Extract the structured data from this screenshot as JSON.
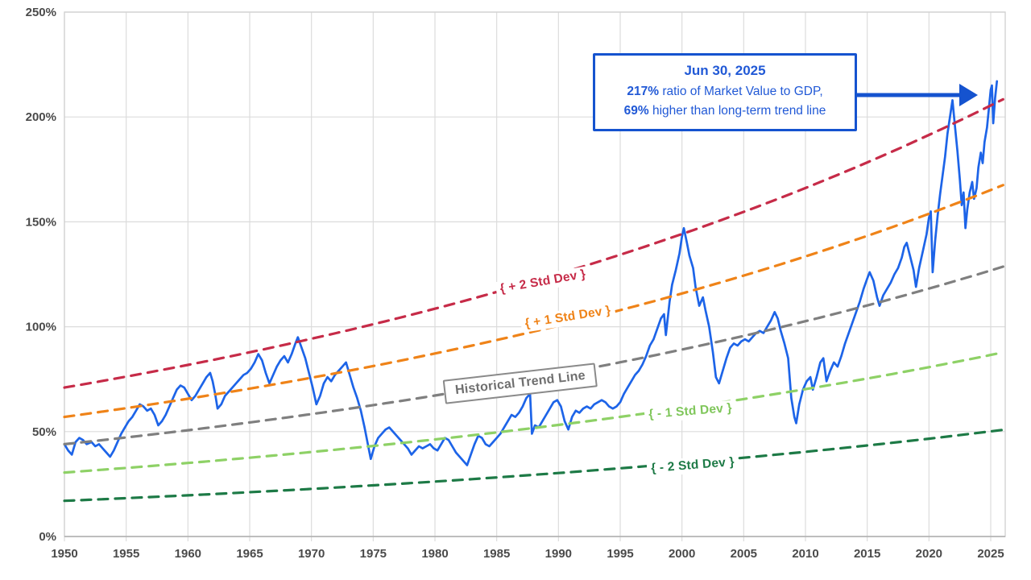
{
  "annotation_box": {
    "date_label": "Jun 30, 2025",
    "ratio_value": "217%",
    "ratio_text": " ratio of Market Value to GDP,",
    "deviation_value": "69%",
    "deviation_text": " higher than long-term trend line",
    "accent_color": "#1553cf"
  },
  "line_labels": {
    "plus2": "{ + 2 Std Dev }",
    "plus1": "{ + 1 Std Dev }",
    "trend": "Historical Trend Line",
    "minus1": "{ - 1 Std Dev }",
    "minus2": "{ - 2 Std Dev }"
  },
  "chart_data": {
    "type": "line",
    "title": "",
    "xlabel": "",
    "ylabel": "",
    "grid": true,
    "x_axis": {
      "ticks": [
        1950,
        1955,
        1960,
        1965,
        1970,
        1975,
        1980,
        1985,
        1990,
        1995,
        2000,
        2005,
        2010,
        2015,
        2020,
        2025
      ],
      "range": [
        1950,
        2026.2
      ]
    },
    "y_axis": {
      "ticks": [
        0,
        50,
        100,
        150,
        200,
        250
      ],
      "tick_suffix": "%",
      "range": [
        0,
        250
      ]
    },
    "series": [
      {
        "name": "Market Value to GDP ratio",
        "style": "solid",
        "color": "#1d64e8",
        "points": [
          [
            1950.0,
            44
          ],
          [
            1950.3,
            41
          ],
          [
            1950.6,
            39
          ],
          [
            1950.9,
            45
          ],
          [
            1951.2,
            47
          ],
          [
            1951.5,
            46
          ],
          [
            1951.8,
            44
          ],
          [
            1952.2,
            45
          ],
          [
            1952.5,
            43
          ],
          [
            1952.8,
            44
          ],
          [
            1953.1,
            42
          ],
          [
            1953.4,
            40
          ],
          [
            1953.7,
            38
          ],
          [
            1954.0,
            41
          ],
          [
            1954.3,
            45
          ],
          [
            1954.6,
            49
          ],
          [
            1954.9,
            52
          ],
          [
            1955.2,
            55
          ],
          [
            1955.5,
            57
          ],
          [
            1955.8,
            60
          ],
          [
            1956.1,
            63
          ],
          [
            1956.4,
            62
          ],
          [
            1956.7,
            60
          ],
          [
            1957.0,
            61
          ],
          [
            1957.3,
            58
          ],
          [
            1957.6,
            53
          ],
          [
            1957.9,
            55
          ],
          [
            1958.2,
            58
          ],
          [
            1958.5,
            62
          ],
          [
            1958.8,
            66
          ],
          [
            1959.1,
            70
          ],
          [
            1959.4,
            72
          ],
          [
            1959.7,
            71
          ],
          [
            1960.0,
            68
          ],
          [
            1960.3,
            65
          ],
          [
            1960.6,
            67
          ],
          [
            1960.9,
            70
          ],
          [
            1961.2,
            73
          ],
          [
            1961.5,
            76
          ],
          [
            1961.8,
            78
          ],
          [
            1962.0,
            74
          ],
          [
            1962.2,
            68
          ],
          [
            1962.4,
            61
          ],
          [
            1962.7,
            63
          ],
          [
            1963.0,
            67
          ],
          [
            1963.3,
            69
          ],
          [
            1963.6,
            71
          ],
          [
            1963.9,
            73
          ],
          [
            1964.2,
            75
          ],
          [
            1964.5,
            77
          ],
          [
            1964.8,
            78
          ],
          [
            1965.1,
            80
          ],
          [
            1965.4,
            83
          ],
          [
            1965.7,
            87
          ],
          [
            1966.0,
            84
          ],
          [
            1966.3,
            78
          ],
          [
            1966.6,
            73
          ],
          [
            1966.9,
            77
          ],
          [
            1967.2,
            81
          ],
          [
            1967.5,
            84
          ],
          [
            1967.8,
            86
          ],
          [
            1968.1,
            83
          ],
          [
            1968.4,
            87
          ],
          [
            1968.7,
            92
          ],
          [
            1968.9,
            95
          ],
          [
            1969.2,
            90
          ],
          [
            1969.5,
            85
          ],
          [
            1969.8,
            78
          ],
          [
            1970.1,
            71
          ],
          [
            1970.4,
            63
          ],
          [
            1970.7,
            67
          ],
          [
            1971.0,
            73
          ],
          [
            1971.3,
            76
          ],
          [
            1971.6,
            74
          ],
          [
            1971.9,
            77
          ],
          [
            1972.2,
            79
          ],
          [
            1972.5,
            81
          ],
          [
            1972.8,
            83
          ],
          [
            1973.1,
            77
          ],
          [
            1973.4,
            71
          ],
          [
            1973.7,
            66
          ],
          [
            1974.0,
            60
          ],
          [
            1974.3,
            52
          ],
          [
            1974.6,
            43
          ],
          [
            1974.8,
            37
          ],
          [
            1975.1,
            43
          ],
          [
            1975.4,
            47
          ],
          [
            1975.7,
            49
          ],
          [
            1976.0,
            51
          ],
          [
            1976.3,
            52
          ],
          [
            1976.6,
            50
          ],
          [
            1976.9,
            48
          ],
          [
            1977.2,
            46
          ],
          [
            1977.5,
            44
          ],
          [
            1977.8,
            42
          ],
          [
            1978.1,
            39
          ],
          [
            1978.4,
            41
          ],
          [
            1978.7,
            43
          ],
          [
            1979.0,
            42
          ],
          [
            1979.3,
            43
          ],
          [
            1979.6,
            44
          ],
          [
            1979.9,
            42
          ],
          [
            1980.2,
            41
          ],
          [
            1980.5,
            44
          ],
          [
            1980.8,
            47
          ],
          [
            1981.1,
            46
          ],
          [
            1981.4,
            43
          ],
          [
            1981.7,
            40
          ],
          [
            1982.0,
            38
          ],
          [
            1982.3,
            36
          ],
          [
            1982.6,
            34
          ],
          [
            1982.9,
            39
          ],
          [
            1983.2,
            44
          ],
          [
            1983.5,
            48
          ],
          [
            1983.8,
            47
          ],
          [
            1984.1,
            44
          ],
          [
            1984.4,
            43
          ],
          [
            1984.7,
            45
          ],
          [
            1985.0,
            47
          ],
          [
            1985.3,
            49
          ],
          [
            1985.6,
            52
          ],
          [
            1985.9,
            55
          ],
          [
            1986.2,
            58
          ],
          [
            1986.5,
            57
          ],
          [
            1986.8,
            59
          ],
          [
            1987.1,
            62
          ],
          [
            1987.4,
            66
          ],
          [
            1987.7,
            68
          ],
          [
            1987.85,
            49
          ],
          [
            1988.1,
            53
          ],
          [
            1988.4,
            52
          ],
          [
            1988.7,
            55
          ],
          [
            1989.0,
            58
          ],
          [
            1989.3,
            61
          ],
          [
            1989.6,
            64
          ],
          [
            1989.9,
            65
          ],
          [
            1990.2,
            62
          ],
          [
            1990.5,
            55
          ],
          [
            1990.8,
            51
          ],
          [
            1991.1,
            57
          ],
          [
            1991.4,
            60
          ],
          [
            1991.7,
            59
          ],
          [
            1992.0,
            61
          ],
          [
            1992.3,
            62
          ],
          [
            1992.6,
            61
          ],
          [
            1992.9,
            63
          ],
          [
            1993.2,
            64
          ],
          [
            1993.5,
            65
          ],
          [
            1993.8,
            64
          ],
          [
            1994.1,
            62
          ],
          [
            1994.4,
            61
          ],
          [
            1994.7,
            62
          ],
          [
            1995.0,
            64
          ],
          [
            1995.3,
            68
          ],
          [
            1995.6,
            71
          ],
          [
            1995.9,
            74
          ],
          [
            1996.2,
            77
          ],
          [
            1996.5,
            79
          ],
          [
            1996.8,
            82
          ],
          [
            1997.1,
            86
          ],
          [
            1997.4,
            91
          ],
          [
            1997.7,
            94
          ],
          [
            1998.0,
            99
          ],
          [
            1998.3,
            104
          ],
          [
            1998.55,
            106
          ],
          [
            1998.7,
            96
          ],
          [
            1999.0,
            112
          ],
          [
            1999.2,
            120
          ],
          [
            1999.5,
            127
          ],
          [
            1999.8,
            135
          ],
          [
            2000.0,
            143
          ],
          [
            2000.15,
            147
          ],
          [
            2000.4,
            140
          ],
          [
            2000.6,
            134
          ],
          [
            2000.9,
            128
          ],
          [
            2001.1,
            119
          ],
          [
            2001.4,
            110
          ],
          [
            2001.7,
            114
          ],
          [
            2001.9,
            108
          ],
          [
            2002.2,
            100
          ],
          [
            2002.5,
            88
          ],
          [
            2002.75,
            76
          ],
          [
            2003.0,
            73
          ],
          [
            2003.3,
            79
          ],
          [
            2003.6,
            85
          ],
          [
            2003.9,
            90
          ],
          [
            2004.2,
            92
          ],
          [
            2004.5,
            91
          ],
          [
            2004.8,
            93
          ],
          [
            2005.1,
            94
          ],
          [
            2005.4,
            93
          ],
          [
            2005.7,
            95
          ],
          [
            2006.0,
            97
          ],
          [
            2006.3,
            98
          ],
          [
            2006.6,
            97
          ],
          [
            2006.9,
            100
          ],
          [
            2007.2,
            103
          ],
          [
            2007.5,
            107
          ],
          [
            2007.75,
            104
          ],
          [
            2008.0,
            98
          ],
          [
            2008.3,
            92
          ],
          [
            2008.6,
            85
          ],
          [
            2008.85,
            66
          ],
          [
            2009.1,
            57
          ],
          [
            2009.25,
            54
          ],
          [
            2009.5,
            63
          ],
          [
            2009.8,
            70
          ],
          [
            2010.1,
            74
          ],
          [
            2010.4,
            76
          ],
          [
            2010.6,
            70
          ],
          [
            2010.9,
            76
          ],
          [
            2011.2,
            83
          ],
          [
            2011.45,
            85
          ],
          [
            2011.7,
            74
          ],
          [
            2012.0,
            79
          ],
          [
            2012.3,
            83
          ],
          [
            2012.6,
            81
          ],
          [
            2012.9,
            86
          ],
          [
            2013.2,
            92
          ],
          [
            2013.5,
            97
          ],
          [
            2013.8,
            102
          ],
          [
            2014.1,
            107
          ],
          [
            2014.4,
            112
          ],
          [
            2014.7,
            118
          ],
          [
            2015.0,
            123
          ],
          [
            2015.2,
            126
          ],
          [
            2015.5,
            122
          ],
          [
            2015.8,
            114
          ],
          [
            2016.0,
            110
          ],
          [
            2016.3,
            115
          ],
          [
            2016.6,
            118
          ],
          [
            2016.9,
            121
          ],
          [
            2017.2,
            125
          ],
          [
            2017.5,
            128
          ],
          [
            2017.8,
            133
          ],
          [
            2018.0,
            138
          ],
          [
            2018.2,
            140
          ],
          [
            2018.5,
            133
          ],
          [
            2018.75,
            127
          ],
          [
            2018.95,
            119
          ],
          [
            2019.2,
            128
          ],
          [
            2019.5,
            136
          ],
          [
            2019.8,
            144
          ],
          [
            2020.0,
            152
          ],
          [
            2020.15,
            155
          ],
          [
            2020.3,
            126
          ],
          [
            2020.5,
            141
          ],
          [
            2020.7,
            153
          ],
          [
            2020.9,
            163
          ],
          [
            2021.1,
            172
          ],
          [
            2021.3,
            181
          ],
          [
            2021.5,
            192
          ],
          [
            2021.7,
            200
          ],
          [
            2021.9,
            208
          ],
          [
            2022.1,
            196
          ],
          [
            2022.3,
            184
          ],
          [
            2022.5,
            170
          ],
          [
            2022.65,
            158
          ],
          [
            2022.8,
            164
          ],
          [
            2022.95,
            147
          ],
          [
            2023.1,
            156
          ],
          [
            2023.3,
            164
          ],
          [
            2023.5,
            169
          ],
          [
            2023.65,
            161
          ],
          [
            2023.85,
            166
          ],
          [
            2024.0,
            176
          ],
          [
            2024.2,
            183
          ],
          [
            2024.35,
            178
          ],
          [
            2024.5,
            188
          ],
          [
            2024.7,
            195
          ],
          [
            2024.85,
            204
          ],
          [
            2025.0,
            213
          ],
          [
            2025.1,
            215
          ],
          [
            2025.2,
            197
          ],
          [
            2025.35,
            209
          ],
          [
            2025.5,
            217
          ]
        ]
      },
      {
        "name": "+2 Std Dev",
        "style": "dashed",
        "interpolation": "exponential",
        "color": "#c62b48",
        "endpoints": [
          [
            1950,
            71
          ],
          [
            2026.2,
            209
          ]
        ]
      },
      {
        "name": "+1 Std Dev",
        "style": "dashed",
        "interpolation": "exponential",
        "color": "#ef8318",
        "endpoints": [
          [
            1950,
            57
          ],
          [
            2026.2,
            168
          ]
        ]
      },
      {
        "name": "Historical Trend Line",
        "style": "dashed",
        "interpolation": "exponential",
        "color": "#7f7f7f",
        "endpoints": [
          [
            1950,
            44
          ],
          [
            2026.2,
            129
          ]
        ]
      },
      {
        "name": "-1 Std Dev",
        "style": "dashed",
        "interpolation": "exponential",
        "color": "#8ed166",
        "endpoints": [
          [
            1950,
            30.5
          ],
          [
            2026.2,
            88
          ]
        ]
      },
      {
        "name": "-2 Std Dev",
        "style": "dashed",
        "interpolation": "exponential",
        "color": "#1d7a46",
        "endpoints": [
          [
            1950,
            17
          ],
          [
            2026.2,
            51
          ]
        ]
      }
    ],
    "annotation": {
      "point_date": "Jun 30, 2025",
      "point_value_pct": 217,
      "pct_above_trend": 69
    }
  }
}
